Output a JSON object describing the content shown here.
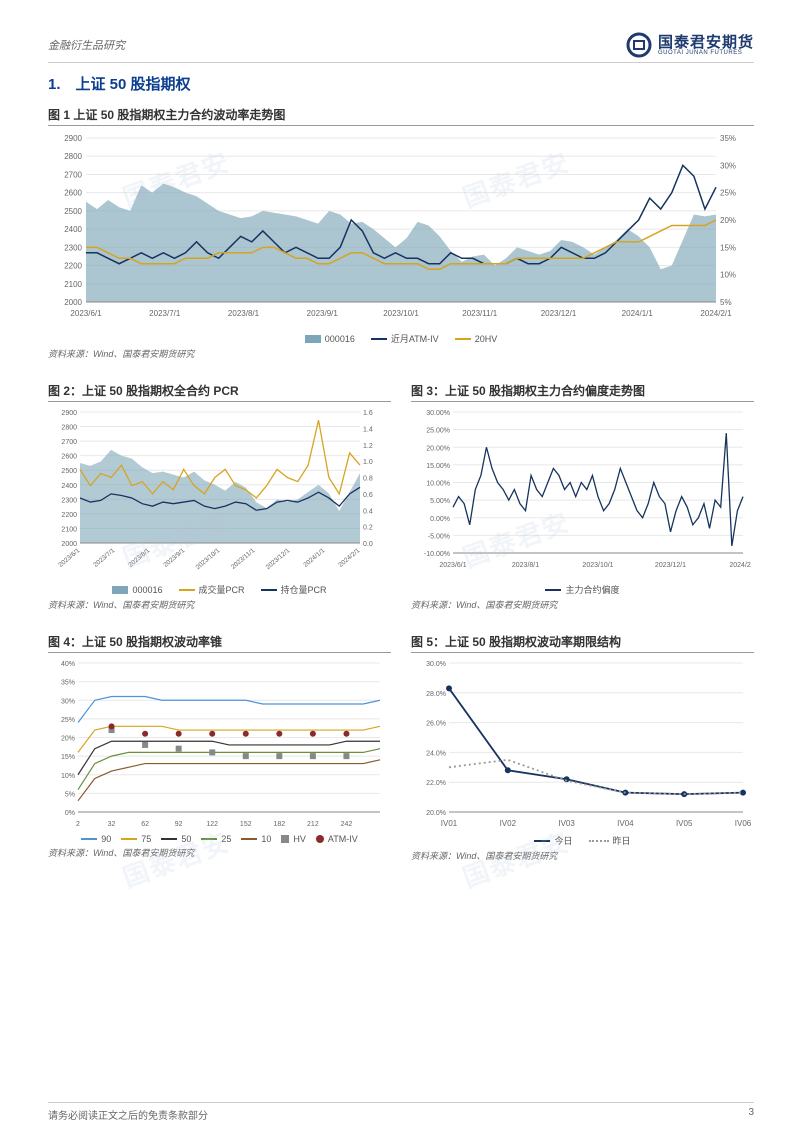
{
  "header": {
    "category": "金融衍生品研究",
    "brand_cn": "国泰君安期货",
    "brand_en": "GUOTAI JUNAN FUTURES"
  },
  "colors": {
    "brand": "#1f3a6e",
    "title": "#0b3d91",
    "area": "#7ea6b8",
    "navy": "#17335f",
    "gold": "#d6a520",
    "skew": "#17335f",
    "p90": "#4f93d6",
    "p75": "#d6a520",
    "p50": "#333333",
    "p25": "#6a8f3a",
    "p10": "#8a5a2a",
    "hv": "#888888",
    "atmiv": "#17335f",
    "today": "#17335f",
    "yesterday": "#999999",
    "grid": "#e8e8e8",
    "axis": "#888888",
    "bg": "#ffffff"
  },
  "section_title": "1.　上证 50 股指期权",
  "fig1": {
    "title_prefix": "图 1",
    "title": "上证 50 股指期权主力合约波动率走势图",
    "x_labels": [
      "2023/6/1",
      "2023/7/1",
      "2023/8/1",
      "2023/9/1",
      "2023/10/1",
      "2023/11/1",
      "2023/12/1",
      "2024/1/1",
      "2024/2/1"
    ],
    "y_left": {
      "min": 2000,
      "max": 2900,
      "step": 100
    },
    "y_right": {
      "min": 5,
      "max": 35,
      "step": 5,
      "suffix": "%"
    },
    "series": {
      "index": {
        "name": "000016",
        "color": "#7ea6b8",
        "type": "area",
        "values": [
          2550,
          2510,
          2560,
          2520,
          2500,
          2640,
          2600,
          2650,
          2630,
          2600,
          2580,
          2540,
          2500,
          2480,
          2460,
          2470,
          2500,
          2490,
          2480,
          2470,
          2450,
          2430,
          2500,
          2480,
          2430,
          2440,
          2400,
          2350,
          2300,
          2350,
          2440,
          2420,
          2360,
          2280,
          2220,
          2250,
          2260,
          2200,
          2240,
          2300,
          2280,
          2260,
          2280,
          2340,
          2330,
          2300,
          2260,
          2300,
          2340,
          2400,
          2360,
          2300,
          2180,
          2200,
          2340,
          2480,
          2470,
          2480
        ]
      },
      "atmiv": {
        "name": "近月ATM-IV",
        "color": "#17335f",
        "type": "line",
        "values": [
          14,
          14,
          13,
          12,
          13,
          14,
          13,
          14,
          13,
          14,
          16,
          14,
          13,
          15,
          17,
          16,
          18,
          16,
          14,
          15,
          14,
          13,
          13,
          15,
          20,
          18,
          14,
          13,
          14,
          13,
          13,
          12,
          12,
          14,
          13,
          13,
          12,
          12,
          12,
          13,
          12,
          12,
          13,
          15,
          14,
          13,
          13,
          14,
          16,
          18,
          20,
          24,
          22,
          25,
          30,
          28,
          22,
          26
        ]
      },
      "hv20": {
        "name": "20HV",
        "color": "#d6a520",
        "type": "line",
        "values": [
          15,
          15,
          14,
          13,
          13,
          12,
          12,
          12,
          12,
          13,
          13,
          13,
          14,
          14,
          14,
          14,
          15,
          15,
          14,
          13,
          13,
          12,
          12,
          13,
          14,
          14,
          13,
          12,
          12,
          12,
          12,
          11,
          11,
          12,
          12,
          12,
          12,
          12,
          12,
          13,
          13,
          13,
          13,
          13,
          13,
          13,
          14,
          15,
          16,
          16,
          16,
          17,
          18,
          19,
          19,
          19,
          19,
          20
        ]
      }
    },
    "source": "资料来源：Wind、国泰君安期货研究"
  },
  "fig2": {
    "title_prefix": "图 2：",
    "title": "上证 50 股指期权全合约 PCR",
    "x_labels": [
      "2023/6/1",
      "2023/7/1",
      "2023/8/1",
      "2023/9/1",
      "2023/10/1",
      "2023/11/1",
      "2023/12/1",
      "2024/1/1",
      "2024/2/1"
    ],
    "y_left": {
      "min": 2000,
      "max": 2900,
      "step": 100
    },
    "y_right": {
      "min": 0,
      "max": 1.6,
      "step": 0.2
    },
    "series": {
      "index": {
        "name": "000016",
        "color": "#7ea6b8",
        "type": "area",
        "values": [
          2550,
          2530,
          2560,
          2640,
          2600,
          2580,
          2520,
          2480,
          2490,
          2470,
          2450,
          2490,
          2430,
          2400,
          2360,
          2420,
          2380,
          2280,
          2240,
          2300,
          2280,
          2300,
          2350,
          2400,
          2340,
          2220,
          2350,
          2480
        ]
      },
      "vol": {
        "name": "成交量PCR",
        "color": "#d6a520",
        "type": "line",
        "values": [
          0.9,
          0.7,
          0.85,
          0.8,
          0.95,
          0.7,
          0.75,
          0.6,
          0.75,
          0.65,
          0.9,
          0.7,
          0.6,
          0.8,
          0.9,
          0.7,
          0.65,
          0.55,
          0.7,
          0.9,
          0.8,
          0.75,
          0.95,
          1.5,
          0.8,
          0.6,
          1.1,
          0.95
        ]
      },
      "oi": {
        "name": "持仓量PCR",
        "color": "#17335f",
        "type": "line",
        "values": [
          0.55,
          0.5,
          0.52,
          0.6,
          0.58,
          0.55,
          0.48,
          0.45,
          0.5,
          0.48,
          0.5,
          0.52,
          0.45,
          0.42,
          0.45,
          0.5,
          0.48,
          0.4,
          0.42,
          0.5,
          0.52,
          0.5,
          0.55,
          0.62,
          0.55,
          0.45,
          0.6,
          0.68
        ]
      }
    },
    "source": "资料来源：Wind、国泰君安期货研究"
  },
  "fig3": {
    "title_prefix": "图 3：",
    "title": "上证 50 股指期权主力合约偏度走势图",
    "x_labels": [
      "2023/6/1",
      "2023/8/1",
      "2023/10/1",
      "2023/12/1",
      "2024/2/1"
    ],
    "y": {
      "min": -10,
      "max": 30,
      "step": 5,
      "suffix": ".00%"
    },
    "series": {
      "skew": {
        "name": "主力合约偏度",
        "color": "#17335f",
        "type": "line",
        "values": [
          3,
          6,
          4,
          -2,
          8,
          12,
          20,
          14,
          10,
          8,
          5,
          8,
          4,
          2,
          12,
          8,
          6,
          10,
          14,
          12,
          8,
          10,
          6,
          10,
          8,
          12,
          6,
          2,
          4,
          8,
          14,
          10,
          6,
          2,
          0,
          4,
          10,
          6,
          4,
          -4,
          2,
          6,
          3,
          -2,
          0,
          4,
          -3,
          5,
          3,
          24,
          -8,
          2,
          6
        ]
      }
    },
    "source": "资料来源：Wind、国泰君安期货研究"
  },
  "fig4": {
    "title_prefix": "图 4：",
    "title": "上证 50 股指期权波动率锥",
    "x": {
      "min": 2,
      "max": 272,
      "ticks": [
        2,
        32,
        62,
        92,
        122,
        152,
        182,
        212,
        242
      ]
    },
    "y": {
      "min": 0,
      "max": 40,
      "step": 5,
      "suffix": "%"
    },
    "lines": {
      "p90": {
        "color": "#4f93d6",
        "values": [
          24,
          30,
          31,
          31,
          31,
          30,
          30,
          30,
          30,
          30,
          30,
          29,
          29,
          29,
          29,
          29,
          29,
          29,
          30
        ]
      },
      "p75": {
        "color": "#d6a520",
        "values": [
          16,
          22,
          23,
          23,
          23,
          23,
          22,
          22,
          22,
          22,
          22,
          22,
          22,
          22,
          22,
          22,
          22,
          22,
          23
        ]
      },
      "p50": {
        "color": "#333333",
        "values": [
          10,
          17,
          19,
          19,
          19,
          19,
          19,
          19,
          19,
          18,
          18,
          18,
          18,
          18,
          18,
          18,
          19,
          19,
          19
        ]
      },
      "p25": {
        "color": "#6a8f3a",
        "values": [
          6,
          13,
          15,
          16,
          16,
          16,
          16,
          16,
          16,
          16,
          16,
          16,
          16,
          16,
          16,
          16,
          16,
          16,
          17
        ]
      },
      "p10": {
        "color": "#8a5a2a",
        "values": [
          3,
          9,
          11,
          12,
          13,
          13,
          13,
          13,
          13,
          13,
          13,
          13,
          13,
          13,
          13,
          13,
          13,
          13,
          14
        ]
      }
    },
    "hv_points": {
      "color": "#888888",
      "x": [
        32,
        62,
        92,
        122,
        152,
        182,
        212,
        242
      ],
      "y": [
        22,
        18,
        17,
        16,
        15,
        15,
        15,
        15
      ]
    },
    "atm_points": {
      "color": "#17335f",
      "x": [
        32,
        62,
        92,
        122,
        152,
        182,
        212,
        242
      ],
      "y": [
        23,
        21,
        21,
        21,
        21,
        21,
        21,
        21
      ]
    },
    "legend": [
      "90",
      "75",
      "50",
      "25",
      "10",
      "HV",
      "ATM-IV"
    ],
    "source": "资料来源：Wind、国泰君安期货研究"
  },
  "fig5": {
    "title_prefix": "图 5：",
    "title": "上证 50 股指期权波动率期限结构",
    "x_labels": [
      "IV01",
      "IV02",
      "IV03",
      "IV04",
      "IV05",
      "IV06"
    ],
    "y": {
      "min": 20,
      "max": 30,
      "step": 2,
      "suffix": ".0%"
    },
    "series": {
      "today": {
        "name": "今日",
        "color": "#17335f",
        "dash": false,
        "values": [
          28.3,
          22.8,
          22.2,
          21.3,
          21.2,
          21.3
        ]
      },
      "yesterday": {
        "name": "昨日",
        "color": "#999999",
        "dash": true,
        "values": [
          23.0,
          23.5,
          22.1,
          21.3,
          21.2,
          21.3
        ]
      }
    },
    "source": "资料来源：Wind、国泰君安期货研究"
  },
  "footer": {
    "disclaimer": "请务必阅读正文之后的免责条款部分",
    "page": "3"
  },
  "watermark": "国泰君安"
}
